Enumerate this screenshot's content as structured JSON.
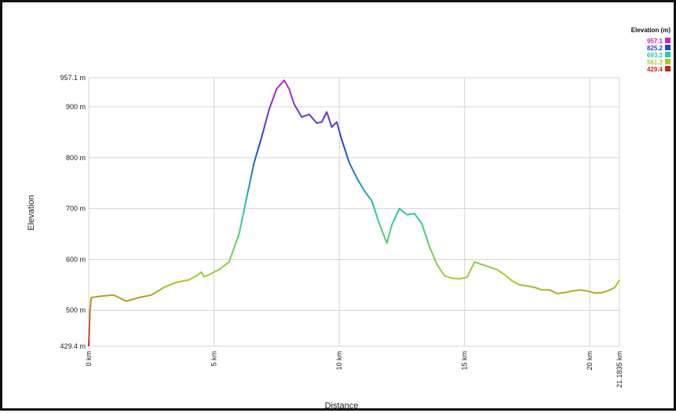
{
  "chart_data": {
    "type": "line",
    "title": "",
    "xlabel": "Distance",
    "ylabel": "Elevation",
    "xlim": [
      0,
      21.1835
    ],
    "ylim": [
      429.4,
      957.1
    ],
    "x_ticks": [
      {
        "value": 0,
        "label": "0 km"
      },
      {
        "value": 5,
        "label": "5 km"
      },
      {
        "value": 10,
        "label": "10 km"
      },
      {
        "value": 15,
        "label": "15 km"
      },
      {
        "value": 20,
        "label": "20 km"
      },
      {
        "value": 21.1835,
        "label": "21.1835 km"
      }
    ],
    "y_ticks": [
      {
        "value": 429.4,
        "label": "429.4 m"
      },
      {
        "value": 500,
        "label": "500 m"
      },
      {
        "value": 600,
        "label": "600 m"
      },
      {
        "value": 700,
        "label": "700 m"
      },
      {
        "value": 800,
        "label": "800 m"
      },
      {
        "value": 900,
        "label": "900 m"
      },
      {
        "value": 957.1,
        "label": "957.1 m"
      }
    ],
    "grid": true,
    "legend": {
      "title": "Elevation (m)",
      "placement": "top-right",
      "entries": [
        {
          "label": "957.1",
          "color": "#cc22cc"
        },
        {
          "label": "825.2",
          "color": "#2244cc"
        },
        {
          "label": "693.2",
          "color": "#22ccaa"
        },
        {
          "label": "561.3",
          "color": "#aacc22"
        },
        {
          "label": "429.4",
          "color": "#cc2222"
        }
      ]
    },
    "series": [
      {
        "x": [
          0,
          0.05,
          0.1,
          0.5,
          1.0,
          1.5,
          2.0,
          2.5,
          3.0,
          3.5,
          4.0,
          4.3,
          4.5,
          4.6,
          4.8,
          5.2,
          5.6,
          6.0,
          6.3,
          6.6,
          6.9,
          7.2,
          7.5,
          7.8,
          8.0,
          8.2,
          8.5,
          8.8,
          9.1,
          9.3,
          9.5,
          9.7,
          9.9,
          10.1,
          10.4,
          10.7,
          11.0,
          11.3,
          11.6,
          11.9,
          12.1,
          12.4,
          12.7,
          13.0,
          13.3,
          13.6,
          13.9,
          14.2,
          14.5,
          14.8,
          15.1,
          15.4,
          15.7,
          16.0,
          16.3,
          16.6,
          16.9,
          17.2,
          17.5,
          17.8,
          18.1,
          18.4,
          18.7,
          19.0,
          19.3,
          19.6,
          19.9,
          20.2,
          20.5,
          20.8,
          21.0,
          21.1835
        ],
        "y": [
          429.4,
          500,
          525,
          528,
          530,
          518,
          525,
          530,
          545,
          555,
          560,
          568,
          575,
          566,
          570,
          580,
          595,
          650,
          720,
          790,
          840,
          895,
          935,
          952,
          935,
          905,
          880,
          885,
          868,
          870,
          890,
          860,
          870,
          835,
          790,
          760,
          735,
          715,
          670,
          632,
          668,
          700,
          688,
          690,
          670,
          625,
          590,
          568,
          563,
          562,
          565,
          595,
          590,
          585,
          580,
          570,
          558,
          550,
          548,
          545,
          540,
          540,
          533,
          535,
          538,
          540,
          538,
          534,
          535,
          540,
          545,
          560
        ]
      }
    ]
  }
}
